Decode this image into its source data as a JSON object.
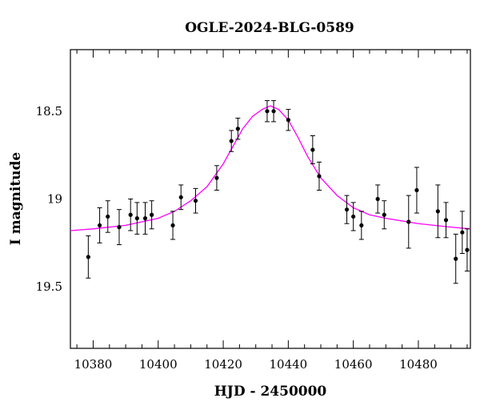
{
  "chart_data": {
    "type": "scatter",
    "title": "OGLE-2024-BLG-0589",
    "xlabel": "HJD - 2450000",
    "ylabel": "I magnitude",
    "xlim": [
      10373,
      10496
    ],
    "ylim": [
      19.85,
      18.15
    ],
    "y_inverted": true,
    "x_ticks": [
      10380,
      10400,
      10420,
      10440,
      10460,
      10480
    ],
    "y_ticks": [
      18.5,
      19,
      19.5
    ],
    "y_tick_labels": [
      "18.5",
      "19",
      "19.5"
    ],
    "grid": false,
    "series": [
      {
        "kind": "points_with_errorbars",
        "color": "#000000",
        "points": [
          {
            "x": 10378.5,
            "y": 19.33,
            "err": 0.12
          },
          {
            "x": 10382.0,
            "y": 19.15,
            "err": 0.1
          },
          {
            "x": 10384.5,
            "y": 19.1,
            "err": 0.09
          },
          {
            "x": 10388.0,
            "y": 19.16,
            "err": 0.1
          },
          {
            "x": 10391.5,
            "y": 19.09,
            "err": 0.09
          },
          {
            "x": 10393.5,
            "y": 19.11,
            "err": 0.09
          },
          {
            "x": 10396.0,
            "y": 19.11,
            "err": 0.09
          },
          {
            "x": 10398.0,
            "y": 19.09,
            "err": 0.08
          },
          {
            "x": 10404.5,
            "y": 19.15,
            "err": 0.08
          },
          {
            "x": 10407.0,
            "y": 18.99,
            "err": 0.07
          },
          {
            "x": 10411.5,
            "y": 19.01,
            "err": 0.07
          },
          {
            "x": 10418.0,
            "y": 18.88,
            "err": 0.07
          },
          {
            "x": 10422.5,
            "y": 18.67,
            "err": 0.06
          },
          {
            "x": 10424.5,
            "y": 18.6,
            "err": 0.06
          },
          {
            "x": 10433.5,
            "y": 18.5,
            "err": 0.06
          },
          {
            "x": 10435.5,
            "y": 18.5,
            "err": 0.06
          },
          {
            "x": 10440.0,
            "y": 18.55,
            "err": 0.06
          },
          {
            "x": 10447.5,
            "y": 18.72,
            "err": 0.08
          },
          {
            "x": 10449.5,
            "y": 18.87,
            "err": 0.08
          },
          {
            "x": 10458.0,
            "y": 19.06,
            "err": 0.08
          },
          {
            "x": 10460.0,
            "y": 19.1,
            "err": 0.08
          },
          {
            "x": 10462.5,
            "y": 19.15,
            "err": 0.08
          },
          {
            "x": 10467.5,
            "y": 19.0,
            "err": 0.08
          },
          {
            "x": 10469.5,
            "y": 19.09,
            "err": 0.08
          },
          {
            "x": 10477.0,
            "y": 19.13,
            "err": 0.15
          },
          {
            "x": 10479.5,
            "y": 18.95,
            "err": 0.13
          },
          {
            "x": 10486.0,
            "y": 19.07,
            "err": 0.15
          },
          {
            "x": 10488.5,
            "y": 19.12,
            "err": 0.1
          },
          {
            "x": 10491.5,
            "y": 19.34,
            "err": 0.14
          },
          {
            "x": 10493.5,
            "y": 19.19,
            "err": 0.12
          },
          {
            "x": 10495.0,
            "y": 19.29,
            "err": 0.12
          }
        ]
      },
      {
        "kind": "model_curve",
        "color": "#ff00ff",
        "x": [
          10373,
          10380,
          10390,
          10400,
          10405,
          10410,
          10415,
          10420,
          10423,
          10426,
          10429,
          10432,
          10434.5,
          10437,
          10440,
          10443,
          10446,
          10450,
          10455,
          10460,
          10465,
          10470,
          10480,
          10490,
          10496
        ],
        "y": [
          19.18,
          19.17,
          19.15,
          19.11,
          19.07,
          19.01,
          18.93,
          18.8,
          18.7,
          18.6,
          18.53,
          18.49,
          18.47,
          18.49,
          18.55,
          18.65,
          18.76,
          18.88,
          18.98,
          19.05,
          19.09,
          19.11,
          19.14,
          19.16,
          19.17
        ]
      }
    ]
  }
}
